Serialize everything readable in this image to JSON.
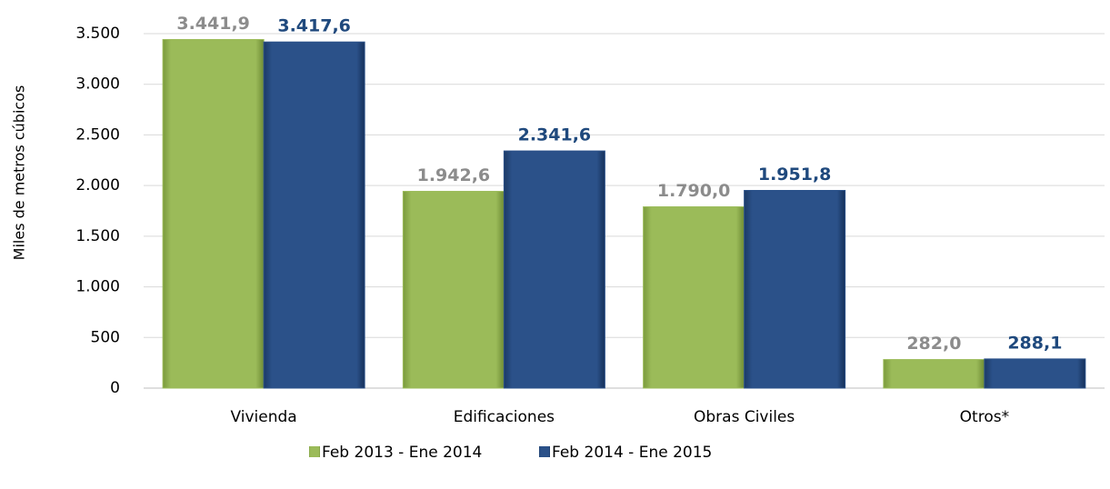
{
  "chart_data": {
    "type": "bar",
    "y_label": "Miles de metros cúbicos",
    "categories": [
      "Vivienda",
      "Edificaciones",
      "Obras Civiles",
      "Otros*"
    ],
    "series": [
      {
        "name": "Feb 2013 - Ene 2014",
        "color": "#9bbb59",
        "label_color": "#8c8c8c",
        "values": [
          3441.9,
          1942.6,
          1790.0,
          282.0
        ],
        "value_labels": [
          "3.441,9",
          "1.942,6",
          "1.790,0",
          "282,0"
        ]
      },
      {
        "name": "Feb 2014 - Ene 2015",
        "color": "#2b5189",
        "label_color": "#1f497d",
        "values": [
          3417.6,
          2341.6,
          1951.8,
          288.1
        ],
        "value_labels": [
          "3.417,6",
          "2.341,6",
          "1.951,8",
          "288,1"
        ]
      }
    ],
    "ylim": [
      0,
      3500
    ],
    "yticks": [
      0,
      500,
      {
        "value": 1000,
        "label": "1.000"
      },
      {
        "value": 1500,
        "label": "1.500"
      },
      {
        "value": 2000,
        "label": "2.000"
      },
      {
        "value": 2500,
        "label": "2.500"
      },
      {
        "value": 3000,
        "label": "3.000"
      },
      {
        "value": 3500,
        "label": "3.500"
      }
    ],
    "grid": true,
    "legend": "bottom"
  }
}
